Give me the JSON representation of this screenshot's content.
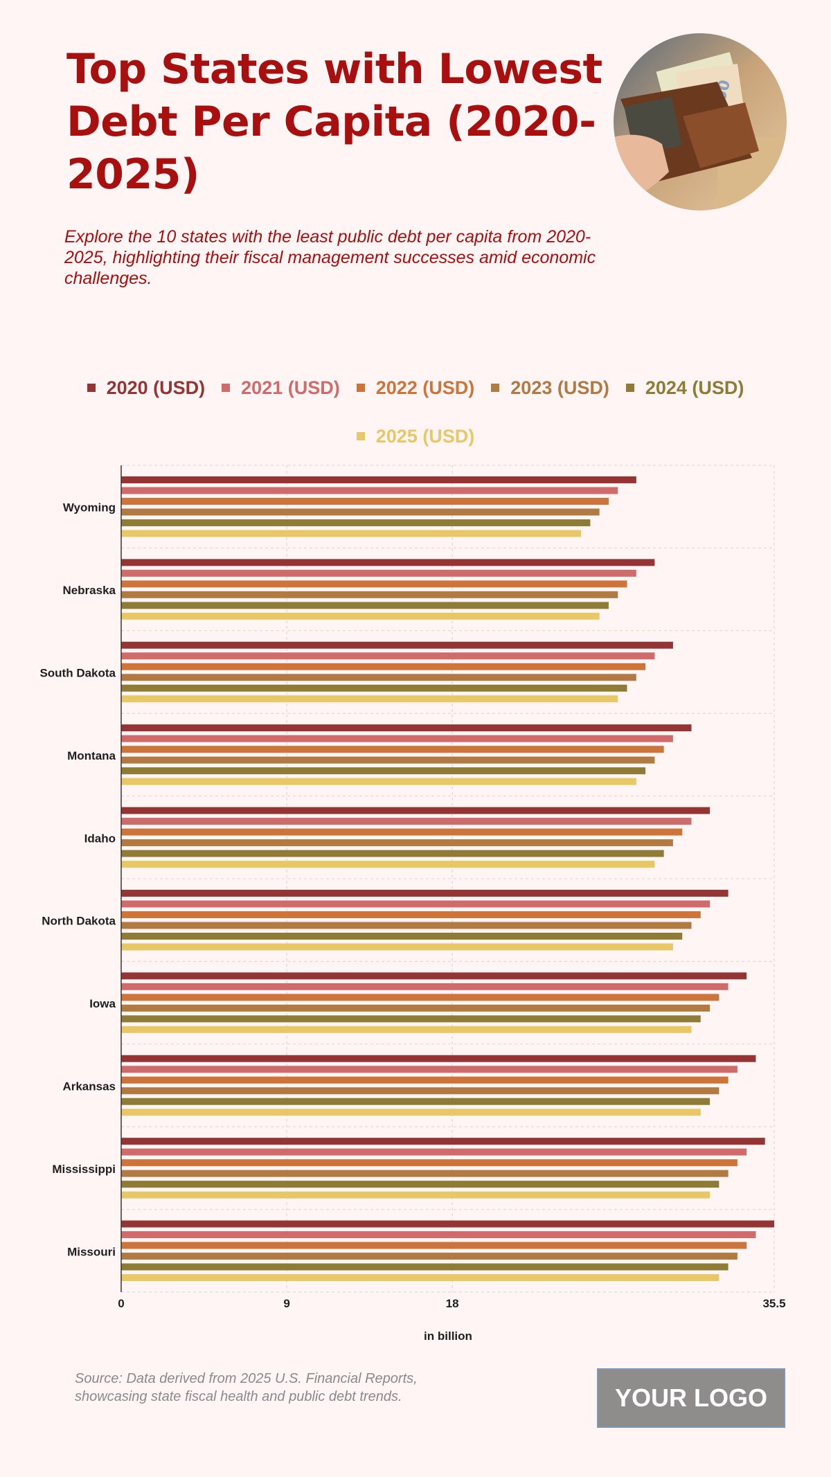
{
  "header": {
    "title": "Top States with Lowest Debt Per Capita (2020-2025)",
    "subtitle": "Explore the 10 states with the least public debt per capita from 2020-2025, highlighting their fiscal management successes amid economic challenges."
  },
  "photo": {
    "icon": "wallet-with-banknotes-photo"
  },
  "footer": {
    "source": "Source: Data derived from 2025 U.S. Financial Reports, showcasing state fiscal health and public debt trends.",
    "logo": "YOUR LOGO"
  },
  "chart_data": {
    "type": "bar",
    "orientation": "horizontal",
    "title": "Top States with Lowest Debt Per Capita (2020-2025)",
    "xlabel": "in billion",
    "ylabel": "",
    "xlim": [
      0,
      35.5
    ],
    "xticks": [
      "0",
      "9",
      "18",
      "35.5"
    ],
    "xtick_values": [
      0,
      9,
      18,
      35.5
    ],
    "grid": true,
    "legend_position": "top",
    "categories": [
      "Wyoming",
      "Nebraska",
      "South Dakota",
      "Montana",
      "Idaho",
      "North Dakota",
      "Iowa",
      "Arkansas",
      "Mississippi",
      "Missouri"
    ],
    "series": [
      {
        "name": "2020 (USD)",
        "color": "#943434",
        "values": [
          28,
          29,
          30,
          31,
          32,
          33,
          34,
          34.5,
          35,
          35.5
        ]
      },
      {
        "name": "2021 (USD)",
        "color": "#cf6b6b",
        "values": [
          27,
          28,
          29,
          30,
          31,
          32,
          33,
          33.5,
          34,
          34.5
        ]
      },
      {
        "name": "2022 (USD)",
        "color": "#cd743a",
        "values": [
          26.5,
          27.5,
          28.5,
          29.5,
          30.5,
          31.5,
          32.5,
          33,
          33.5,
          34
        ]
      },
      {
        "name": "2023 (USD)",
        "color": "#b07a42",
        "values": [
          26,
          27,
          28,
          29,
          30,
          31,
          32,
          32.5,
          33,
          33.5
        ]
      },
      {
        "name": "2024 (USD)",
        "color": "#8e7c36",
        "values": [
          25.5,
          26.5,
          27.5,
          28.5,
          29.5,
          30.5,
          31.5,
          32,
          32.5,
          33
        ]
      },
      {
        "name": "2025 (USD)",
        "color": "#e8c866",
        "values": [
          25,
          26,
          27,
          28,
          29,
          30,
          31,
          31.5,
          32,
          32.5
        ]
      }
    ]
  }
}
